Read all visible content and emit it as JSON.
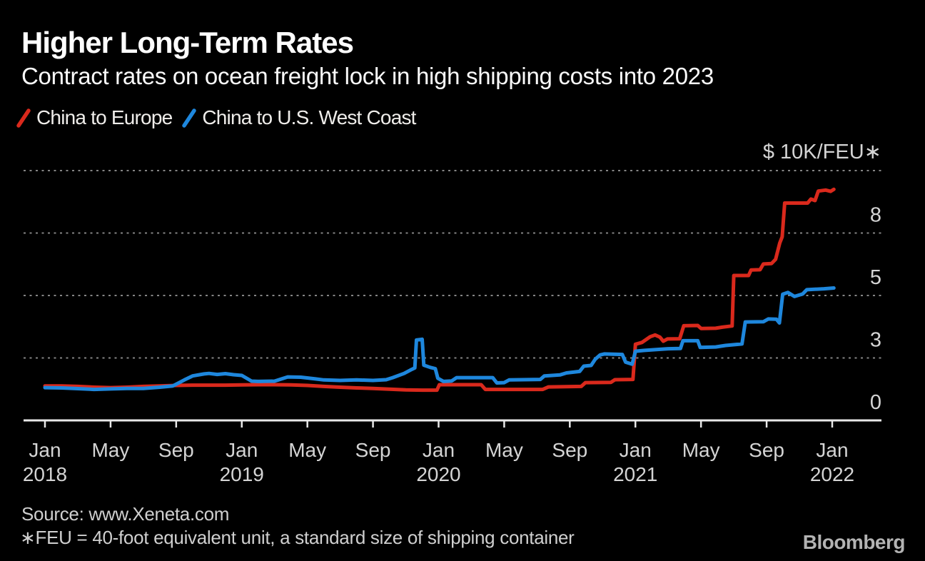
{
  "header": {
    "title": "Higher Long-Term Rates",
    "subtitle": "Contract rates on ocean freight lock in high shipping costs into 2023"
  },
  "footer": {
    "source": "Source: www.Xeneta.com",
    "footnote": "∗FEU = 40-foot equivalent unit, a standard size of shipping container",
    "brand": "Bloomberg"
  },
  "chart_data": {
    "type": "line",
    "title": "Higher Long-Term Rates",
    "subtitle": "Contract rates on ocean freight lock in high shipping costs into 2023",
    "unit": "thousand USD per FEU (40-foot equivalent unit)",
    "x_range": "Jan 2018 to Jan 2022, monthly; m = months since Jan 2018",
    "grid": "dotted horizontal gridlines",
    "legend_position": "top-left",
    "colors": {
      "background": "#000000",
      "gridline": "#858585",
      "axis_line": "#e8e8e8",
      "axis_text": "#d4d4d4"
    },
    "y_axis": {
      "min": 0,
      "max": 10,
      "unit_label": "$ 10K/FEU∗",
      "gridlines": [
        2.5,
        5,
        7.5,
        10
      ],
      "labels": [
        {
          "v": 7.5,
          "text": "8"
        },
        {
          "v": 5,
          "text": "5"
        },
        {
          "v": 2.5,
          "text": "3"
        },
        {
          "v": 0,
          "text": "0"
        }
      ]
    },
    "x_axis": {
      "ticks": [
        {
          "m": 0,
          "label": "Jan",
          "year": "2018"
        },
        {
          "m": 4,
          "label": "May"
        },
        {
          "m": 8,
          "label": "Sep"
        },
        {
          "m": 12,
          "label": "Jan",
          "year": "2019"
        },
        {
          "m": 16,
          "label": "May"
        },
        {
          "m": 20,
          "label": "Sep"
        },
        {
          "m": 24,
          "label": "Jan",
          "year": "2020"
        },
        {
          "m": 28,
          "label": "May"
        },
        {
          "m": 32,
          "label": "Sep"
        },
        {
          "m": 36,
          "label": "Jan",
          "year": "2021"
        },
        {
          "m": 40,
          "label": "May"
        },
        {
          "m": 44,
          "label": "Sep"
        },
        {
          "m": 48,
          "label": "Jan",
          "year": "2022"
        }
      ]
    },
    "series": [
      {
        "name": "China to Europe",
        "color": "#da291c",
        "points": [
          [
            0,
            1.38
          ],
          [
            1,
            1.38
          ],
          [
            2,
            1.36
          ],
          [
            3,
            1.33
          ],
          [
            4,
            1.31
          ],
          [
            5,
            1.33
          ],
          [
            6,
            1.36
          ],
          [
            7,
            1.38
          ],
          [
            8,
            1.4
          ],
          [
            9,
            1.41
          ],
          [
            10,
            1.41
          ],
          [
            11,
            1.41
          ],
          [
            12,
            1.42
          ],
          [
            13,
            1.43
          ],
          [
            14,
            1.43
          ],
          [
            15,
            1.42
          ],
          [
            16,
            1.4
          ],
          [
            17,
            1.36
          ],
          [
            18,
            1.33
          ],
          [
            19,
            1.3
          ],
          [
            20,
            1.28
          ],
          [
            21,
            1.25
          ],
          [
            22,
            1.22
          ],
          [
            23,
            1.21
          ],
          [
            23.9,
            1.21
          ],
          [
            24.05,
            1.43
          ],
          [
            26.6,
            1.43
          ],
          [
            26.85,
            1.24
          ],
          [
            30.35,
            1.24
          ],
          [
            30.7,
            1.34
          ],
          [
            32.7,
            1.36
          ],
          [
            32.95,
            1.51
          ],
          [
            34.5,
            1.52
          ],
          [
            34.75,
            1.63
          ],
          [
            35.85,
            1.64
          ],
          [
            36.0,
            3.05
          ],
          [
            36.4,
            3.12
          ],
          [
            36.9,
            3.35
          ],
          [
            37.2,
            3.42
          ],
          [
            37.5,
            3.33
          ],
          [
            37.7,
            3.17
          ],
          [
            37.95,
            3.26
          ],
          [
            38.7,
            3.27
          ],
          [
            38.95,
            3.79
          ],
          [
            39.8,
            3.8
          ],
          [
            40.0,
            3.68
          ],
          [
            40.9,
            3.69
          ],
          [
            41.3,
            3.73
          ],
          [
            41.9,
            3.78
          ],
          [
            42.0,
            5.8
          ],
          [
            42.9,
            5.8
          ],
          [
            43.05,
            6.02
          ],
          [
            43.6,
            6.03
          ],
          [
            43.8,
            6.26
          ],
          [
            44.3,
            6.28
          ],
          [
            44.55,
            6.45
          ],
          [
            44.8,
            7.1
          ],
          [
            44.95,
            7.35
          ],
          [
            45.1,
            8.7
          ],
          [
            46.5,
            8.7
          ],
          [
            46.7,
            8.86
          ],
          [
            46.95,
            8.8
          ],
          [
            47.15,
            9.18
          ],
          [
            47.6,
            9.22
          ],
          [
            47.9,
            9.17
          ],
          [
            48.1,
            9.25
          ]
        ]
      },
      {
        "name": "China to U.S. West Coast",
        "color": "#1e87dd",
        "points": [
          [
            0,
            1.31
          ],
          [
            1,
            1.3
          ],
          [
            2,
            1.27
          ],
          [
            3,
            1.24
          ],
          [
            4,
            1.26
          ],
          [
            5,
            1.28
          ],
          [
            6,
            1.28
          ],
          [
            7,
            1.33
          ],
          [
            7.8,
            1.38
          ],
          [
            8.5,
            1.62
          ],
          [
            9,
            1.78
          ],
          [
            9.7,
            1.86
          ],
          [
            10,
            1.88
          ],
          [
            10.5,
            1.84
          ],
          [
            11,
            1.87
          ],
          [
            11.5,
            1.83
          ],
          [
            12,
            1.8
          ],
          [
            12.6,
            1.57
          ],
          [
            13,
            1.56
          ],
          [
            14,
            1.57
          ],
          [
            14.8,
            1.74
          ],
          [
            15.6,
            1.73
          ],
          [
            16.5,
            1.66
          ],
          [
            17,
            1.62
          ],
          [
            18,
            1.6
          ],
          [
            19,
            1.62
          ],
          [
            20,
            1.6
          ],
          [
            20.8,
            1.63
          ],
          [
            21.2,
            1.71
          ],
          [
            21.9,
            1.88
          ],
          [
            22.3,
            2.02
          ],
          [
            22.55,
            2.1
          ],
          [
            22.65,
            3.22
          ],
          [
            23.0,
            3.25
          ],
          [
            23.1,
            2.21
          ],
          [
            23.5,
            2.12
          ],
          [
            23.8,
            2.07
          ],
          [
            23.95,
            1.69
          ],
          [
            24.3,
            1.56
          ],
          [
            24.8,
            1.58
          ],
          [
            25.1,
            1.71
          ],
          [
            27.3,
            1.71
          ],
          [
            27.55,
            1.5
          ],
          [
            28.0,
            1.51
          ],
          [
            28.3,
            1.62
          ],
          [
            30.2,
            1.64
          ],
          [
            30.45,
            1.78
          ],
          [
            31.4,
            1.82
          ],
          [
            31.8,
            1.9
          ],
          [
            32.6,
            1.96
          ],
          [
            32.85,
            2.17
          ],
          [
            33.3,
            2.2
          ],
          [
            33.55,
            2.45
          ],
          [
            33.85,
            2.62
          ],
          [
            34.1,
            2.66
          ],
          [
            35.2,
            2.64
          ],
          [
            35.4,
            2.33
          ],
          [
            35.8,
            2.25
          ],
          [
            36.0,
            2.77
          ],
          [
            36.5,
            2.8
          ],
          [
            37.2,
            2.83
          ],
          [
            38.0,
            2.87
          ],
          [
            38.75,
            2.88
          ],
          [
            38.9,
            3.19
          ],
          [
            39.8,
            3.19
          ],
          [
            39.95,
            2.92
          ],
          [
            40.9,
            2.94
          ],
          [
            41.5,
            3.0
          ],
          [
            42.5,
            3.06
          ],
          [
            42.7,
            3.94
          ],
          [
            43.8,
            3.95
          ],
          [
            44.1,
            4.06
          ],
          [
            44.6,
            4.05
          ],
          [
            44.78,
            3.9
          ],
          [
            44.98,
            5.05
          ],
          [
            45.3,
            5.12
          ],
          [
            45.7,
            4.96
          ],
          [
            46.2,
            5.06
          ],
          [
            46.45,
            5.23
          ],
          [
            47.5,
            5.27
          ],
          [
            48.1,
            5.3
          ]
        ]
      }
    ]
  }
}
